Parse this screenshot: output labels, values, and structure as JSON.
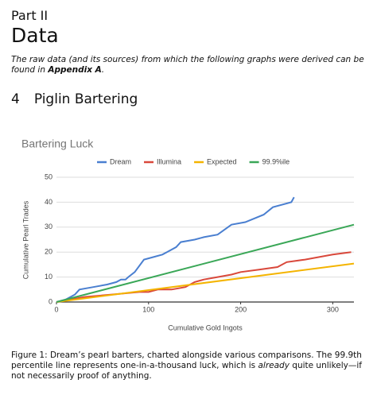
{
  "header": {
    "part": "Part II",
    "title": "Data"
  },
  "intro": [
    "The raw data (and its sources) from which the following graphs were derived can be found in ",
    "Appendix A",
    "."
  ],
  "section": {
    "number": "4",
    "title": "Piglin Bartering"
  },
  "chart_data": {
    "type": "line",
    "title": "Bartering Luck",
    "x_label": "Cumulative Gold Ingots",
    "y_label": "Cumulative Pearl Trades",
    "xlim": [
      0,
      323
    ],
    "ylim": [
      0,
      50
    ],
    "xticks": [
      0,
      100,
      200,
      300
    ],
    "yticks": [
      0,
      10,
      20,
      30,
      40,
      50
    ],
    "grid": true,
    "legend": "top",
    "series": [
      {
        "name": "Dream",
        "color": "#4a7fd0",
        "x": [
          0,
          10,
          20,
          25,
          40,
          55,
          65,
          70,
          75,
          78,
          85,
          95,
          105,
          115,
          120,
          130,
          135,
          150,
          160,
          175,
          190,
          205,
          225,
          235,
          255,
          258
        ],
        "values": [
          0,
          1,
          3,
          5,
          6,
          7,
          8,
          9,
          9,
          10,
          12,
          17,
          18,
          19,
          20,
          22,
          24,
          25,
          26,
          27,
          31,
          32,
          35,
          38,
          40,
          42
        ]
      },
      {
        "name": "Illumina",
        "color": "#d9483b",
        "x": [
          0,
          30,
          60,
          90,
          100,
          110,
          125,
          140,
          150,
          160,
          175,
          190,
          200,
          220,
          240,
          250,
          270,
          300,
          320
        ],
        "values": [
          0,
          2,
          3,
          4,
          4,
          5,
          5,
          6,
          8,
          9,
          10,
          11,
          12,
          13,
          14,
          16,
          17,
          19,
          20
        ]
      },
      {
        "name": "Expected",
        "color": "#f4b400",
        "x": [
          0,
          323
        ],
        "values": [
          0,
          15.4
        ]
      },
      {
        "name": "99.9%ile",
        "color": "#3aa757",
        "x": [
          0,
          323
        ],
        "values": [
          0,
          31
        ]
      }
    ]
  },
  "caption": [
    "Figure 1: Dream’s pearl barters, charted alongside various comparisons. The 99.9th percentile line represents one-in-a-thousand luck, which is ",
    "already",
    " quite unlikely—if not necessarily proof of anything."
  ]
}
